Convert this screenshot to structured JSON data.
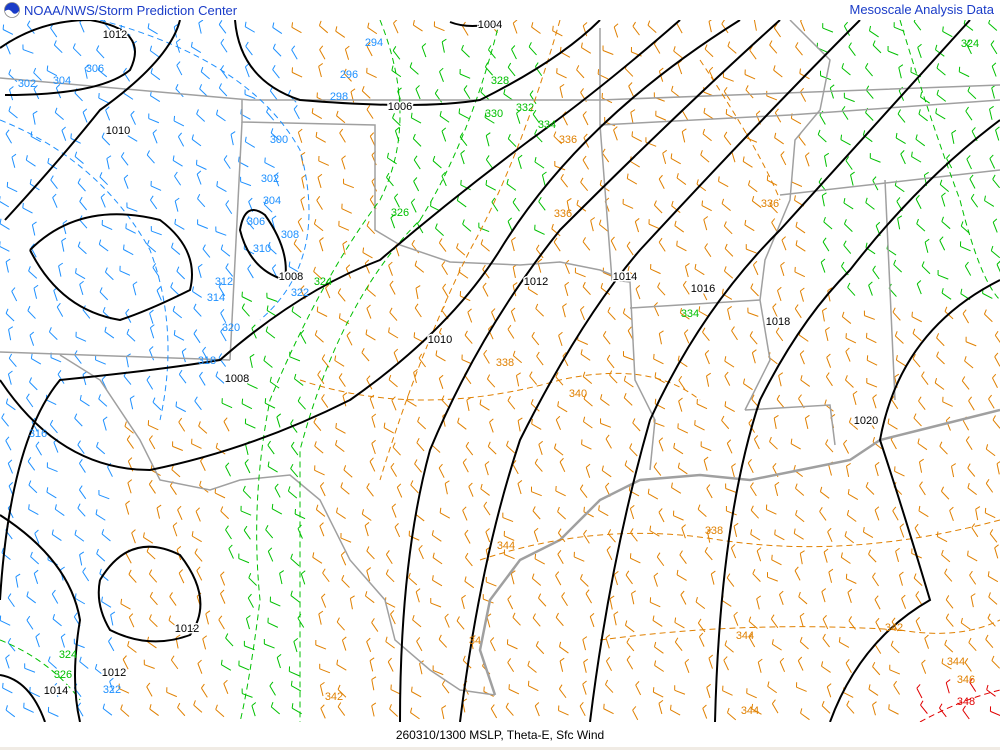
{
  "header": {
    "org": "NOAA/NWS/Storm Prediction Center",
    "product": "Mesoscale Analysis Data",
    "logo": "noaa-logo"
  },
  "footer": {
    "caption": "260310/1300 MSLP, Theta-E, Sfc Wind"
  },
  "colors": {
    "isobar": "#000000",
    "theta_cold": "#1e90ff",
    "theta_mid": "#00c000",
    "theta_warm": "#e08000",
    "theta_hot": "#e00000",
    "borders": "#a0a0a0"
  },
  "isobar_labels": [
    "1004",
    "1012",
    "1010",
    "1006",
    "1008",
    "1008",
    "1010",
    "1012",
    "1014",
    "1016",
    "1018",
    "1020",
    "1012",
    "1012",
    "1014"
  ],
  "theta_labels_blue": [
    "294",
    "296",
    "298",
    "300",
    "302",
    "304",
    "306",
    "308",
    "310",
    "312",
    "314",
    "320",
    "318",
    "316",
    "302",
    "304",
    "306",
    "322",
    "322"
  ],
  "theta_labels_green": [
    "328",
    "330",
    "332",
    "334",
    "326",
    "324",
    "334",
    "324",
    "324",
    "326"
  ],
  "theta_labels_orange": [
    "336",
    "336",
    "336",
    "338",
    "340",
    "338",
    "344",
    "344",
    "342",
    "342",
    "344",
    "346",
    "344",
    "34"
  ],
  "theta_labels_red": [
    "348"
  ]
}
